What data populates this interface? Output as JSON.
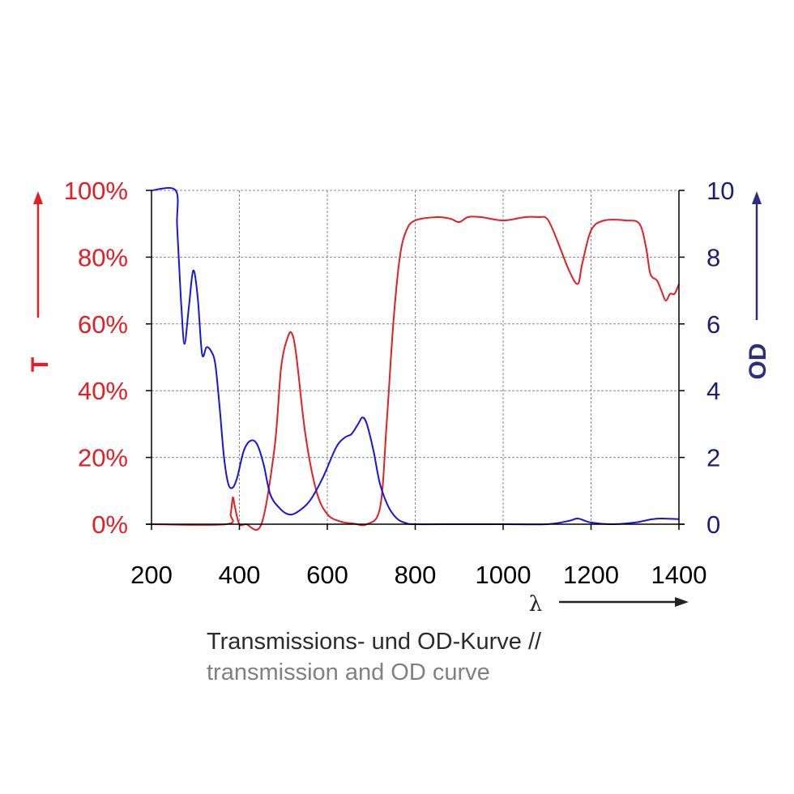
{
  "chart_data": {
    "type": "line",
    "xlabel": "λ",
    "xlim": [
      200,
      1400
    ],
    "x_ticks": [
      "200",
      "400",
      "600",
      "800",
      "1000",
      "1200",
      "1400"
    ],
    "y_left": {
      "label": "T",
      "lim": [
        0,
        100
      ],
      "ticks": [
        "0%",
        "20%",
        "40%",
        "60%",
        "80%",
        "100%"
      ],
      "color": "#e31e24"
    },
    "y_right": {
      "label": "OD",
      "lim": [
        0,
        10
      ],
      "ticks": [
        "0",
        "2",
        "4",
        "6",
        "8",
        "10"
      ],
      "color": "#2e2d7e"
    },
    "grid": true,
    "series": [
      {
        "name": "T",
        "axis": "left",
        "color": "#e31e24",
        "x": [
          200,
          370,
          380,
          385,
          390,
          400,
          415,
          450,
          480,
          495,
          510,
          520,
          530,
          550,
          575,
          600,
          630,
          660,
          690,
          720,
          735,
          750,
          765,
          780,
          800,
          850,
          880,
          900,
          920,
          950,
          1000,
          1050,
          1080,
          1100,
          1120,
          1150,
          1170,
          1180,
          1200,
          1230,
          1280,
          1310,
          1325,
          1335,
          1350,
          1360,
          1370,
          1380,
          1390,
          1400
        ],
        "values": [
          0,
          0,
          3,
          8,
          5,
          0,
          0,
          0,
          23,
          47,
          56,
          57,
          50,
          27,
          10,
          3,
          0.8,
          0.2,
          0,
          5,
          30,
          60,
          80,
          88,
          91,
          92,
          91.5,
          90.5,
          92,
          92,
          91,
          92,
          92,
          91.5,
          86,
          76,
          72,
          78,
          88,
          91,
          91,
          90,
          83,
          75,
          73,
          70,
          67,
          69,
          69,
          72
        ]
      },
      {
        "name": "OD",
        "axis": "right",
        "color": "#1515e0",
        "x": [
          200,
          255,
          258,
          262,
          268,
          275,
          285,
          295,
          305,
          315,
          325,
          335,
          345,
          355,
          365,
          375,
          385,
          395,
          410,
          425,
          440,
          455,
          470,
          490,
          510,
          530,
          560,
          590,
          620,
          640,
          655,
          670,
          680,
          690,
          705,
          720,
          740,
          760,
          780,
          800,
          900,
          1000,
          1100,
          1150,
          1170,
          1200,
          1250,
          1300,
          1320,
          1340,
          1360,
          1400
        ],
        "values": [
          10,
          10,
          9,
          8,
          6.5,
          5.4,
          6.5,
          7.6,
          6.8,
          5.1,
          5.3,
          5.2,
          4.8,
          3.5,
          2,
          1.2,
          1.1,
          1.4,
          2.2,
          2.5,
          2.4,
          1.8,
          0.9,
          0.5,
          0.3,
          0.35,
          0.7,
          1.4,
          2.3,
          2.6,
          2.7,
          3,
          3.2,
          3,
          2.2,
          1.2,
          0.5,
          0.15,
          0.03,
          0,
          0,
          0,
          0,
          0.1,
          0.17,
          0.05,
          0,
          0.05,
          0.1,
          0.15,
          0.17,
          0.15
        ]
      }
    ]
  },
  "caption": {
    "line1": "Transmissions- und OD-Kurve //",
    "line2": "transmission and OD curve"
  }
}
